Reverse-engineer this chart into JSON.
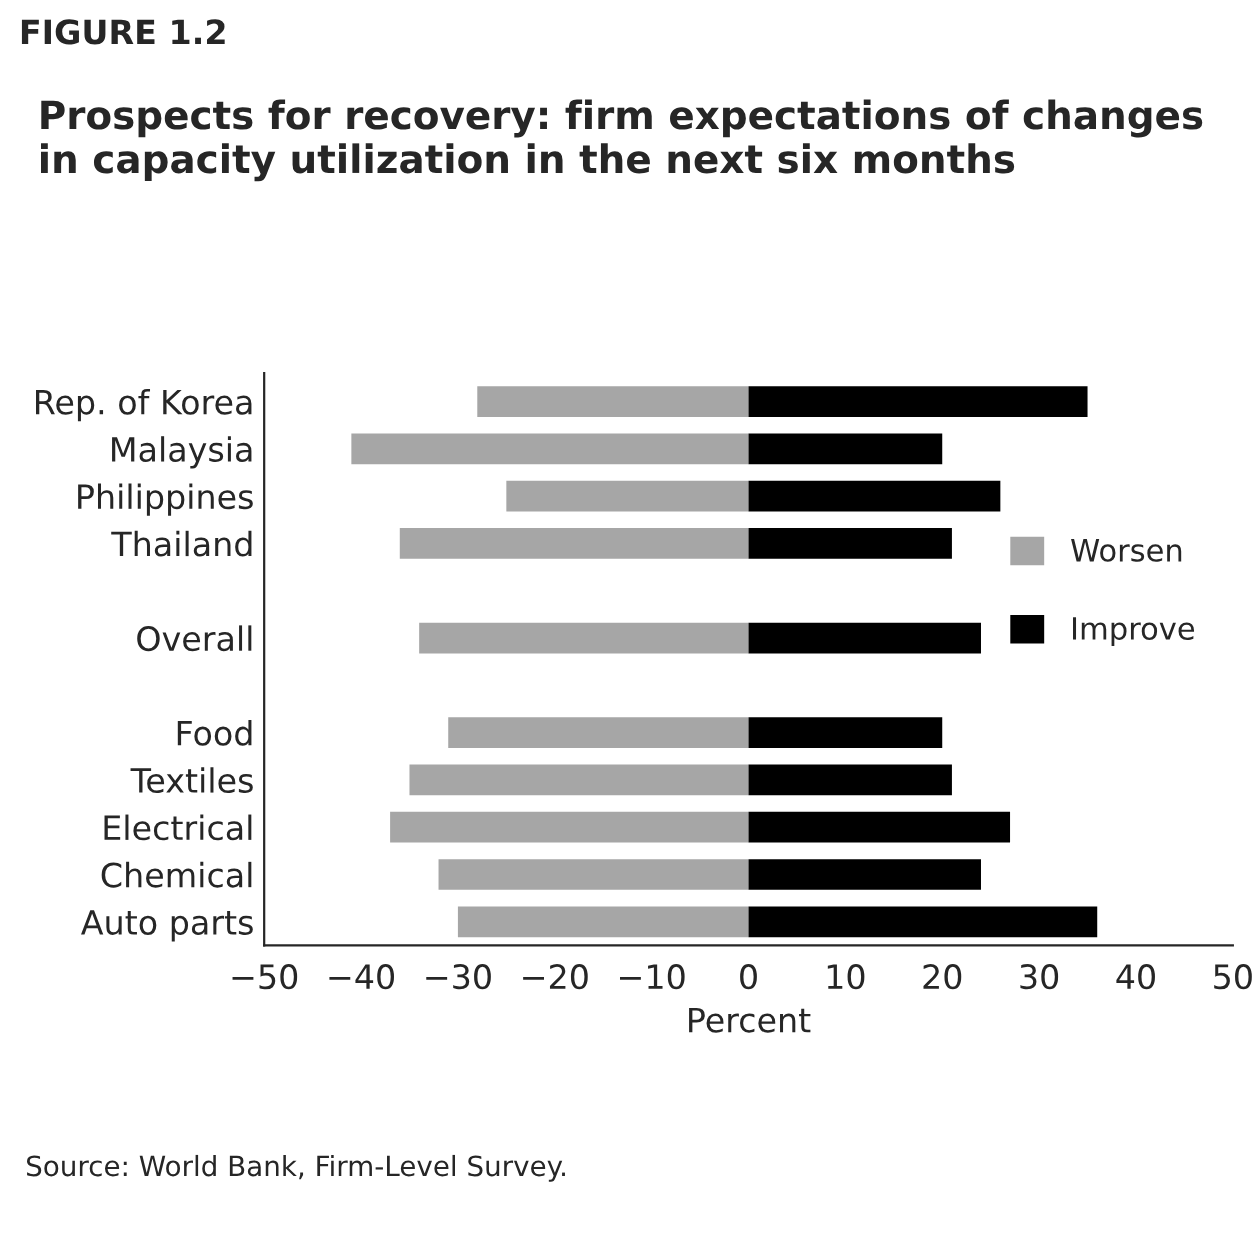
{
  "chart_data": {
    "type": "bar",
    "orientation": "horizontal",
    "title": "Prospects for recovery: firm expectations of changes in capacity utilization in the next six months",
    "annotations": [
      "FIGURE 1.2",
      "Source: World Bank, Firm-Level Survey."
    ],
    "xlabel": "Percent",
    "categories": [
      "Rep. of Korea",
      "Malaysia",
      "Philippines",
      "Thailand",
      null,
      "Overall",
      null,
      "Food",
      "Textiles",
      "Electrical",
      "Chemical",
      "Auto parts"
    ],
    "series": [
      {
        "name": "Worsen",
        "color": "#a6a6a6",
        "values": [
          -28,
          -41,
          -25,
          -36,
          null,
          -34,
          null,
          -31,
          -35,
          -37,
          -32,
          -30
        ]
      },
      {
        "name": "Improve",
        "color": "#000000",
        "values": [
          35,
          20,
          26,
          21,
          null,
          24,
          null,
          20,
          21,
          27,
          24,
          36
        ]
      }
    ],
    "xlim": [
      -50,
      50
    ],
    "xticks": [
      -50,
      -40,
      -30,
      -20,
      -10,
      0,
      10,
      20,
      30,
      40,
      50
    ],
    "legend": "right",
    "grid": false,
    "stacked": true
  }
}
